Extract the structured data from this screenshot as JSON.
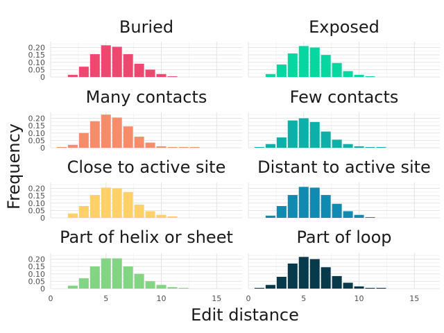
{
  "chart_data": {
    "type": "bar",
    "facet_layout": "4x2",
    "xlabel": "Edit distance",
    "ylabel": "Frequency",
    "xlim": [
      0,
      17.3
    ],
    "ylim": [
      0,
      0.24
    ],
    "x_ticks": [
      0,
      5,
      10,
      15
    ],
    "y_ticks": [
      0,
      0.05,
      0.1,
      0.15,
      0.2
    ],
    "y_tick_labels": [
      "0",
      "0.05",
      "0.10",
      "0.15",
      "0.20"
    ],
    "x_tick_labels": [
      "0",
      "5",
      "10",
      "15"
    ],
    "grid": true,
    "x": [
      1,
      2,
      3,
      4,
      5,
      6,
      7,
      8,
      9,
      10,
      11,
      12,
      13,
      14,
      15
    ],
    "panels": [
      {
        "title": "Buried",
        "color": "#ef476f",
        "values": [
          0,
          0.015,
          0.07,
          0.155,
          0.215,
          0.205,
          0.155,
          0.09,
          0.05,
          0.02,
          0.005,
          0,
          0,
          0,
          0
        ]
      },
      {
        "title": "Exposed",
        "color": "#06d6a0",
        "values": [
          0,
          0.02,
          0.085,
          0.16,
          0.21,
          0.2,
          0.15,
          0.095,
          0.04,
          0.015,
          0.005,
          0,
          0,
          0,
          0
        ]
      },
      {
        "title": "Many contacts",
        "color": "#f78c6b",
        "values": [
          0.005,
          0.02,
          0.1,
          0.18,
          0.225,
          0.205,
          0.145,
          0.075,
          0.035,
          0.01,
          0.005,
          0.005,
          0.005,
          0,
          0
        ]
      },
      {
        "title": "Few contacts",
        "color": "#0cb0a9",
        "values": [
          0.005,
          0.025,
          0.07,
          0.185,
          0.2,
          0.175,
          0.11,
          0.055,
          0.025,
          0.01,
          0.005,
          0.005,
          0,
          0,
          0
        ]
      },
      {
        "title": "Close to active site",
        "color": "#ffd166",
        "values": [
          0,
          0.03,
          0.08,
          0.155,
          0.205,
          0.2,
          0.175,
          0.09,
          0.045,
          0.02,
          0.01,
          0,
          0,
          0,
          0
        ]
      },
      {
        "title": "Distant to active site",
        "color": "#118ab2",
        "values": [
          0,
          0.015,
          0.08,
          0.155,
          0.21,
          0.205,
          0.155,
          0.095,
          0.045,
          0.02,
          0.005,
          0,
          0,
          0,
          0
        ]
      },
      {
        "title": "Part of helix or sheet",
        "color": "#83d483",
        "values": [
          0,
          0.02,
          0.07,
          0.15,
          0.205,
          0.205,
          0.15,
          0.1,
          0.05,
          0.025,
          0.01,
          0.005,
          0,
          0,
          0
        ]
      },
      {
        "title": "Part of loop",
        "color": "#073b4c",
        "values": [
          0.005,
          0.025,
          0.08,
          0.17,
          0.215,
          0.2,
          0.145,
          0.085,
          0.04,
          0.015,
          0.005,
          0.005,
          0,
          0,
          0
        ]
      }
    ]
  }
}
